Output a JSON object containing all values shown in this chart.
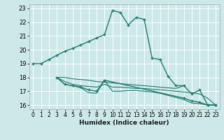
{
  "xlabel": "Humidex (Indice chaleur)",
  "bg_color": "#cce8e8",
  "grid_color": "#ffffff",
  "line_color": "#1e7b6e",
  "xlim": [
    -0.5,
    23.5
  ],
  "ylim": [
    15.7,
    23.3
  ],
  "x_ticks": [
    0,
    1,
    2,
    3,
    4,
    5,
    6,
    7,
    8,
    9,
    10,
    11,
    12,
    13,
    14,
    15,
    16,
    17,
    18,
    19,
    20,
    21,
    22,
    23
  ],
  "y_ticks": [
    16,
    17,
    18,
    19,
    20,
    21,
    22,
    23
  ],
  "series": [
    {
      "x": [
        0,
        1,
        2,
        3,
        4,
        5,
        6,
        7,
        8,
        9,
        10,
        11,
        12,
        13,
        14,
        15,
        16,
        17,
        18,
        19,
        20,
        21,
        22,
        23
      ],
      "y": [
        19.0,
        19.0,
        19.3,
        19.6,
        19.9,
        20.1,
        20.35,
        20.6,
        20.85,
        21.1,
        22.85,
        22.7,
        21.8,
        22.35,
        22.2,
        19.4,
        19.3,
        18.1,
        17.4,
        17.4,
        16.8,
        17.1,
        16.0,
        16.0
      ],
      "marker": true
    },
    {
      "x": [
        3,
        4,
        5,
        6,
        7,
        8,
        9,
        10,
        11,
        12,
        13,
        14,
        15,
        16,
        17,
        18,
        19
      ],
      "y": [
        18.0,
        18.0,
        17.9,
        17.85,
        17.8,
        17.7,
        17.65,
        17.6,
        17.55,
        17.5,
        17.45,
        17.4,
        17.35,
        17.3,
        17.25,
        17.2,
        17.4
      ],
      "marker": false
    },
    {
      "x": [
        3,
        4,
        5,
        6,
        7,
        8,
        9,
        10,
        11,
        12,
        13,
        14,
        15,
        16,
        17,
        18,
        19,
        20,
        21,
        22,
        23
      ],
      "y": [
        18.0,
        17.7,
        17.5,
        17.4,
        17.35,
        17.3,
        17.5,
        17.3,
        17.3,
        17.25,
        17.2,
        17.2,
        17.15,
        17.1,
        17.05,
        17.0,
        16.95,
        16.9,
        16.8,
        16.5,
        16.0
      ],
      "marker": false
    },
    {
      "x": [
        3,
        4,
        5,
        6,
        7,
        8,
        9,
        19,
        20,
        21,
        22,
        23
      ],
      "y": [
        18.0,
        17.5,
        17.4,
        17.3,
        17.1,
        17.0,
        17.8,
        16.5,
        16.3,
        16.2,
        16.0,
        16.0
      ],
      "marker": true
    },
    {
      "x": [
        3,
        4,
        5,
        6,
        7,
        8,
        9,
        10,
        11,
        12,
        13,
        14,
        15,
        16,
        17,
        18,
        19,
        20,
        21,
        22,
        23
      ],
      "y": [
        18.0,
        17.5,
        17.4,
        17.25,
        16.9,
        16.85,
        17.8,
        17.0,
        17.0,
        17.05,
        17.05,
        17.0,
        16.95,
        16.85,
        16.7,
        16.55,
        16.4,
        16.15,
        16.1,
        16.0,
        16.0
      ],
      "marker": false
    }
  ]
}
